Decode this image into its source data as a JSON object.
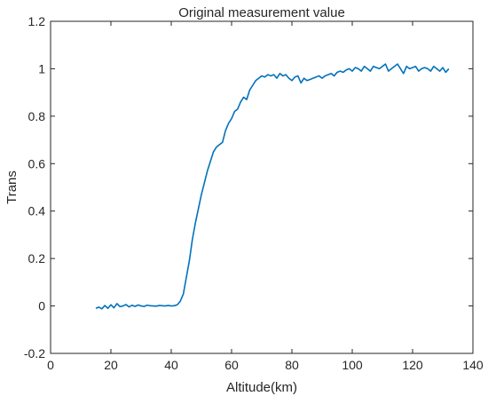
{
  "chart_data": {
    "type": "line",
    "title": "Original measurement value",
    "xlabel": "Altitude(km)",
    "ylabel": "Trans",
    "xlim": [
      0,
      140
    ],
    "ylim": [
      -0.2,
      1.2
    ],
    "xticks": [
      0,
      20,
      40,
      60,
      80,
      100,
      120,
      140
    ],
    "yticks": [
      -0.2,
      0,
      0.2,
      0.4,
      0.6,
      0.8,
      1,
      1.2
    ],
    "xtick_labels": [
      "0",
      "20",
      "40",
      "60",
      "80",
      "100",
      "120",
      "140"
    ],
    "ytick_labels": [
      "-0.2",
      "0",
      "0.2",
      "0.4",
      "0.6",
      "0.8",
      "1",
      "1.2"
    ],
    "grid": false,
    "series": [
      {
        "color": "#0072BD",
        "x": [
          15,
          16,
          17,
          18,
          19,
          20,
          21,
          22,
          23,
          24,
          25,
          26,
          27,
          28,
          29,
          30,
          31,
          32,
          33,
          34,
          35,
          36,
          37,
          38,
          39,
          40,
          41,
          42,
          43,
          44,
          45,
          46,
          47,
          48,
          49,
          50,
          51,
          52,
          53,
          54,
          55,
          56,
          57,
          58,
          59,
          60,
          61,
          62,
          63,
          64,
          65,
          66,
          67,
          68,
          69,
          70,
          71,
          72,
          73,
          74,
          75,
          76,
          77,
          78,
          79,
          80,
          81,
          82,
          83,
          84,
          85,
          86,
          87,
          88,
          89,
          90,
          91,
          92,
          93,
          94,
          95,
          96,
          97,
          98,
          99,
          100,
          101,
          102,
          103,
          104,
          105,
          106,
          107,
          108,
          109,
          110,
          111,
          112,
          113,
          114,
          115,
          116,
          117,
          118,
          119,
          120,
          121,
          122,
          123,
          124,
          125,
          126,
          127,
          128,
          129,
          130,
          131,
          132
        ],
        "y": [
          -0.01,
          -0.005,
          -0.012,
          0.002,
          -0.01,
          0.005,
          -0.008,
          0.01,
          -0.003,
          0.0,
          0.006,
          -0.004,
          0.003,
          -0.002,
          0.004,
          0.0,
          -0.002,
          0.003,
          0.001,
          0.0,
          -0.001,
          0.002,
          0.001,
          0.0,
          0.002,
          0.0,
          0.001,
          0.005,
          0.02,
          0.05,
          0.12,
          0.19,
          0.28,
          0.35,
          0.41,
          0.47,
          0.52,
          0.57,
          0.61,
          0.65,
          0.67,
          0.68,
          0.69,
          0.74,
          0.77,
          0.79,
          0.82,
          0.83,
          0.86,
          0.88,
          0.87,
          0.91,
          0.93,
          0.95,
          0.96,
          0.97,
          0.965,
          0.975,
          0.97,
          0.975,
          0.96,
          0.98,
          0.97,
          0.975,
          0.96,
          0.95,
          0.965,
          0.97,
          0.94,
          0.96,
          0.95,
          0.955,
          0.96,
          0.965,
          0.97,
          0.96,
          0.97,
          0.975,
          0.98,
          0.97,
          0.985,
          0.99,
          0.985,
          0.995,
          1.0,
          0.99,
          1.005,
          1.0,
          0.99,
          1.01,
          1.0,
          0.99,
          1.01,
          1.005,
          1.0,
          1.01,
          1.02,
          0.99,
          1.0,
          1.01,
          1.02,
          1.0,
          0.98,
          1.01,
          1.0,
          1.005,
          1.01,
          0.99,
          1.0,
          1.005,
          1.0,
          0.99,
          1.01,
          1.0,
          0.99,
          1.005,
          0.985,
          1.0
        ]
      }
    ]
  }
}
